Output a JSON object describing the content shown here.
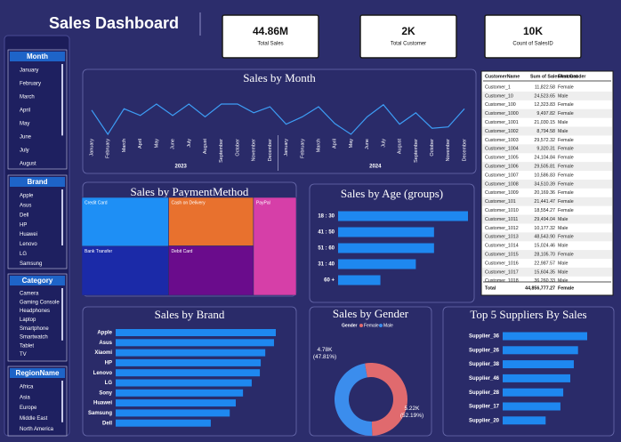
{
  "title": "Sales Dashboard",
  "kpis": [
    {
      "value": "44.86M",
      "label": "Total Sales"
    },
    {
      "value": "2K",
      "label": "Total Customer"
    },
    {
      "value": "10K",
      "label": "Count of SalesID"
    }
  ],
  "slicers": [
    {
      "title": "Month",
      "items": [
        "January",
        "February",
        "March",
        "April",
        "May",
        "June",
        "July",
        "August"
      ]
    },
    {
      "title": "Brand",
      "items": [
        "Apple",
        "Asus",
        "Dell",
        "HP",
        "Huawei",
        "Lenovo",
        "LG",
        "Samsung"
      ]
    },
    {
      "title": "Category",
      "items": [
        "Camera",
        "Gaming Console",
        "Headphones",
        "Laptop",
        "Smartphone",
        "Smartwatch",
        "Tablet",
        "TV"
      ]
    },
    {
      "title": "RegionName",
      "items": [
        "Africa",
        "Asia",
        "Europe",
        "Middle East",
        "North America"
      ]
    }
  ],
  "table": {
    "headers": [
      "CustomerName",
      "Sum of SalesAmount",
      "First Gender"
    ],
    "rows": [
      [
        "Customer_1",
        "11,822.58",
        "Female"
      ],
      [
        "Customer_10",
        "24,523.65",
        "Male"
      ],
      [
        "Customer_100",
        "12,323.83",
        "Female"
      ],
      [
        "Customer_1000",
        "9,497.82",
        "Female"
      ],
      [
        "Customer_1001",
        "21,030.15",
        "Male"
      ],
      [
        "Customer_1002",
        "8,794.58",
        "Male"
      ],
      [
        "Customer_1003",
        "29,572.32",
        "Female"
      ],
      [
        "Customer_1004",
        "9,320.31",
        "Female"
      ],
      [
        "Customer_1005",
        "24,104.84",
        "Female"
      ],
      [
        "Customer_1006",
        "29,505.81",
        "Female"
      ],
      [
        "Customer_1007",
        "10,586.83",
        "Female"
      ],
      [
        "Customer_1008",
        "34,510.39",
        "Female"
      ],
      [
        "Customer_1009",
        "20,169.36",
        "Female"
      ],
      [
        "Customer_101",
        "21,441.47",
        "Female"
      ],
      [
        "Customer_1010",
        "18,554.27",
        "Female"
      ],
      [
        "Customer_1011",
        "29,494.04",
        "Male"
      ],
      [
        "Customer_1012",
        "10,177.32",
        "Male"
      ],
      [
        "Customer_1013",
        "48,543.90",
        "Female"
      ],
      [
        "Customer_1014",
        "15,024.46",
        "Male"
      ],
      [
        "Customer_1015",
        "28,105.70",
        "Female"
      ],
      [
        "Customer_1016",
        "22,987.57",
        "Male"
      ],
      [
        "Customer_1017",
        "15,604.35",
        "Male"
      ],
      [
        "Customer_1018",
        "36,260.33",
        "Male"
      ]
    ],
    "total": [
      "Total",
      "44,856,777.27",
      "Female"
    ]
  },
  "chart_data": [
    {
      "type": "line",
      "title": "Sales by Month",
      "categories": [
        "January",
        "February",
        "March",
        "April",
        "May",
        "June",
        "July",
        "August",
        "September",
        "October",
        "November",
        "December",
        "January",
        "February",
        "March",
        "April",
        "May",
        "June",
        "July",
        "August",
        "September",
        "October",
        "November",
        "December"
      ],
      "years": [
        "2023",
        "2024"
      ],
      "values": [
        1960000,
        1600000,
        1980000,
        1880000,
        2050000,
        1880000,
        2050000,
        1860000,
        2050000,
        2050000,
        1920000,
        2010000,
        1750000,
        1860000,
        2010000,
        1760000,
        1600000,
        1860000,
        2040000,
        1750000,
        1920000,
        1690000,
        1710000,
        1980000
      ],
      "color": "#3d9df5"
    },
    {
      "type": "treemap",
      "title": "Sales by PaymentMethod",
      "categories": [
        "Credit Card",
        "Cash on Delivery",
        "Bank Transfer",
        "Debit Card",
        "PayPal"
      ],
      "values": [
        9050000,
        8800000,
        9100000,
        8950000,
        8950000
      ],
      "colors": [
        "#1e8ff5",
        "#e8712e",
        "#1b2aa8",
        "#6a0c8c",
        "#d63fa8"
      ]
    },
    {
      "type": "hbar",
      "title": "Sales by Age (groups)",
      "categories": [
        "18 : 30",
        "41 : 50",
        "51 : 60",
        "31 : 40",
        "60 +"
      ],
      "values": [
        13200000,
        9750000,
        9750000,
        7900000,
        4300000
      ],
      "color": "#1e88f0"
    },
    {
      "type": "hbar",
      "title": "Sales by Brand",
      "categories": [
        "Apple",
        "Asus",
        "Xiaomi",
        "HP",
        "Lenovo",
        "LG",
        "Sony",
        "Huawei",
        "Samsung",
        "Dell"
      ],
      "values": [
        5320000,
        5260000,
        4970000,
        4820000,
        4790000,
        4520000,
        4230000,
        3990000,
        3790000,
        3160000
      ],
      "color": "#1e88f0"
    },
    {
      "type": "donut",
      "title": "Sales by Gender",
      "legend_title": "Gender",
      "categories": [
        "Female",
        "Male"
      ],
      "values": [
        5219,
        4781
      ],
      "value_labels": [
        "5.22K (52.19%)",
        "4.78K (47.81%)"
      ],
      "colors": [
        "#e06a6e",
        "#3b8ded"
      ]
    },
    {
      "type": "hbar",
      "title": "Top 5 Suppliers By Sales",
      "categories": [
        "Supplier_36",
        "Supplier_26",
        "Supplier_38",
        "Supplier_46",
        "Supplier_28",
        "Supplier_17",
        "Supplier_20"
      ],
      "values": [
        1200000,
        1070000,
        1010000,
        960000,
        860000,
        820000,
        610000
      ],
      "color": "#1e88f0"
    }
  ]
}
